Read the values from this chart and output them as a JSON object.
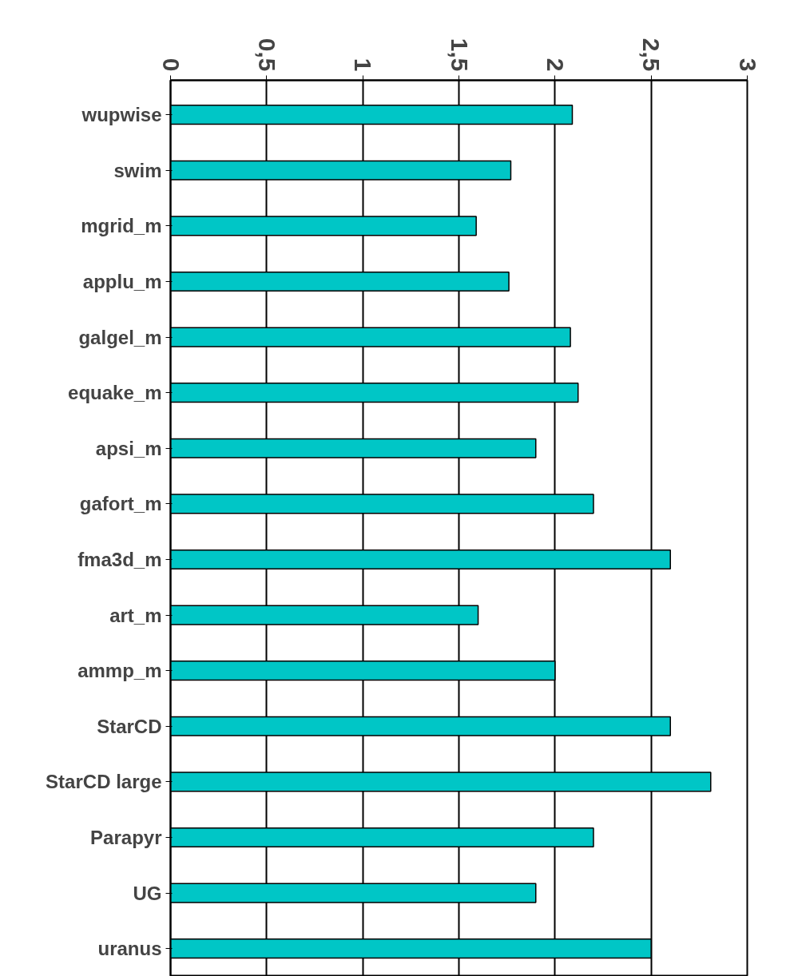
{
  "chart_data": {
    "type": "bar",
    "orientation": "horizontal",
    "categories": [
      "wupwise",
      "swim",
      "mgrid_m",
      "applu_m",
      "galgel_m",
      "equake_m",
      "apsi_m",
      "gafort_m",
      "fma3d_m",
      "art_m",
      "ammp_m",
      "StarCD",
      "StarCD large",
      "Parapyr",
      "UG",
      "uranus"
    ],
    "values": [
      2.09,
      1.77,
      1.59,
      1.76,
      2.08,
      2.12,
      1.9,
      2.2,
      2.6,
      1.6,
      2.0,
      2.6,
      2.81,
      2.2,
      1.9,
      2.5
    ],
    "color": "#00c6c6",
    "xlim": [
      0,
      3
    ],
    "xticks": [
      0,
      {
        "value": 0.5,
        "label": "0,5"
      },
      1,
      {
        "value": 1.5,
        "label": "1,5"
      },
      2,
      {
        "value": 2.5,
        "label": "2,5"
      },
      3
    ],
    "grid": "x"
  }
}
